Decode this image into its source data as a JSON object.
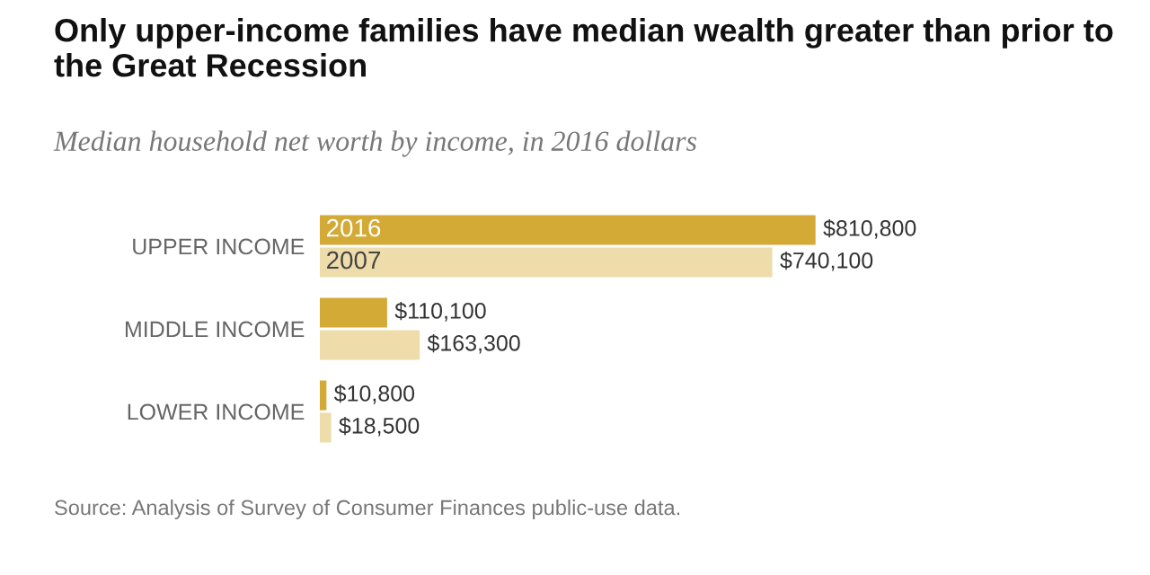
{
  "chart_data": {
    "type": "bar",
    "orientation": "horizontal",
    "title": "Only upper-income families have median wealth greater than prior to the Great Recession",
    "subtitle": "Median household net worth by income, in 2016 dollars",
    "categories": [
      "UPPER INCOME",
      "MIDDLE INCOME",
      "LOWER INCOME"
    ],
    "series": [
      {
        "name": "2016",
        "color": "#d4aa37",
        "values": [
          810800,
          110100,
          10800
        ],
        "value_labels": [
          "$810,800",
          "$110,100",
          "$10,800"
        ]
      },
      {
        "name": "2007",
        "color": "#eedcab",
        "values": [
          740100,
          163300,
          18500
        ],
        "value_labels": [
          "$740,100",
          "$163,300",
          "$18,500"
        ]
      }
    ],
    "legend": false,
    "grid": false,
    "annotations": [
      "Source: Analysis of Survey of Consumer Finances public-use data."
    ]
  }
}
